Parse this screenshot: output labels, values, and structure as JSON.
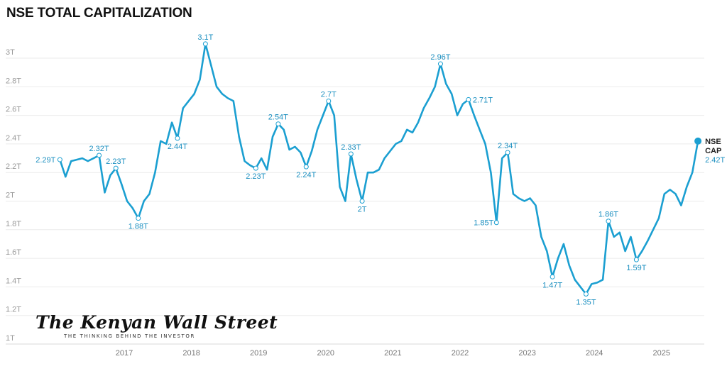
{
  "chart_data": {
    "type": "line",
    "title": "NSE TOTAL CAPITALIZATION",
    "xlabel": "",
    "ylabel": "",
    "ylim": [
      1,
      3
    ],
    "yticks": [
      "1T",
      "1.2T",
      "1.4T",
      "1.6T",
      "1.8T",
      "2T",
      "2.2T",
      "2.4T",
      "2.6T",
      "2.8T",
      "3T"
    ],
    "ytick_values": [
      1,
      1.2,
      1.4,
      1.6,
      1.8,
      2,
      2.2,
      2.4,
      2.6,
      2.8,
      3
    ],
    "xticks": [
      "2017",
      "2018",
      "2019",
      "2020",
      "2021",
      "2022",
      "2023",
      "2024",
      "2025"
    ],
    "grid": true,
    "color": "#1b9fd1",
    "series": [
      {
        "name": "NSE CAP",
        "end_value_label": "2.42T",
        "x_start": "2016-01",
        "interval": "month",
        "values": [
          2.29,
          2.17,
          2.28,
          2.29,
          2.3,
          2.28,
          2.3,
          2.32,
          2.06,
          2.18,
          2.23,
          2.12,
          2.0,
          1.95,
          1.88,
          2.0,
          2.05,
          2.2,
          2.42,
          2.4,
          2.55,
          2.44,
          2.65,
          2.7,
          2.75,
          2.85,
          3.1,
          2.95,
          2.8,
          2.75,
          2.72,
          2.7,
          2.45,
          2.28,
          2.25,
          2.23,
          2.3,
          2.22,
          2.45,
          2.54,
          2.5,
          2.36,
          2.38,
          2.34,
          2.24,
          2.35,
          2.5,
          2.6,
          2.7,
          2.6,
          2.1,
          2.0,
          2.33,
          2.15,
          2.0,
          2.2,
          2.2,
          2.22,
          2.3,
          2.35,
          2.4,
          2.42,
          2.5,
          2.48,
          2.55,
          2.65,
          2.72,
          2.8,
          2.96,
          2.82,
          2.75,
          2.6,
          2.68,
          2.71,
          2.6,
          2.5,
          2.4,
          2.2,
          1.85,
          2.3,
          2.34,
          2.05,
          2.02,
          2.0,
          2.02,
          1.97,
          1.75,
          1.65,
          1.47,
          1.6,
          1.7,
          1.55,
          1.45,
          1.4,
          1.35,
          1.42,
          1.43,
          1.45,
          1.86,
          1.75,
          1.78,
          1.65,
          1.75,
          1.59,
          1.65,
          1.72,
          1.8,
          1.88,
          2.05,
          2.08,
          2.05,
          1.97,
          2.1,
          2.2,
          2.42
        ]
      }
    ],
    "annotations": [
      {
        "index": 0,
        "label": "2.29T",
        "position": "left"
      },
      {
        "index": 7,
        "label": "2.32T",
        "position": "above"
      },
      {
        "index": 10,
        "label": "2.23T",
        "position": "above"
      },
      {
        "index": 14,
        "label": "1.88T",
        "position": "below"
      },
      {
        "index": 21,
        "label": "2.44T",
        "position": "below"
      },
      {
        "index": 26,
        "label": "3.1T",
        "position": "above"
      },
      {
        "index": 35,
        "label": "2.23T",
        "position": "below"
      },
      {
        "index": 39,
        "label": "2.54T",
        "position": "above"
      },
      {
        "index": 44,
        "label": "2.24T",
        "position": "below"
      },
      {
        "index": 48,
        "label": "2.7T",
        "position": "above"
      },
      {
        "index": 52,
        "label": "2.33T",
        "position": "above"
      },
      {
        "index": 54,
        "label": "2T",
        "position": "below"
      },
      {
        "index": 68,
        "label": "2.96T",
        "position": "above"
      },
      {
        "index": 73,
        "label": "2.71T",
        "position": "right"
      },
      {
        "index": 78,
        "label": "1.85T",
        "position": "below-left"
      },
      {
        "index": 80,
        "label": "2.34T",
        "position": "above"
      },
      {
        "index": 88,
        "label": "1.47T",
        "position": "below"
      },
      {
        "index": 94,
        "label": "1.35T",
        "position": "below"
      },
      {
        "index": 98,
        "label": "1.86T",
        "position": "above"
      },
      {
        "index": 103,
        "label": "1.59T",
        "position": "below"
      }
    ]
  },
  "branding": {
    "name": "The Kenyan Wall Street",
    "tagline": "THE THINKING BEHIND THE INVESTOR"
  }
}
